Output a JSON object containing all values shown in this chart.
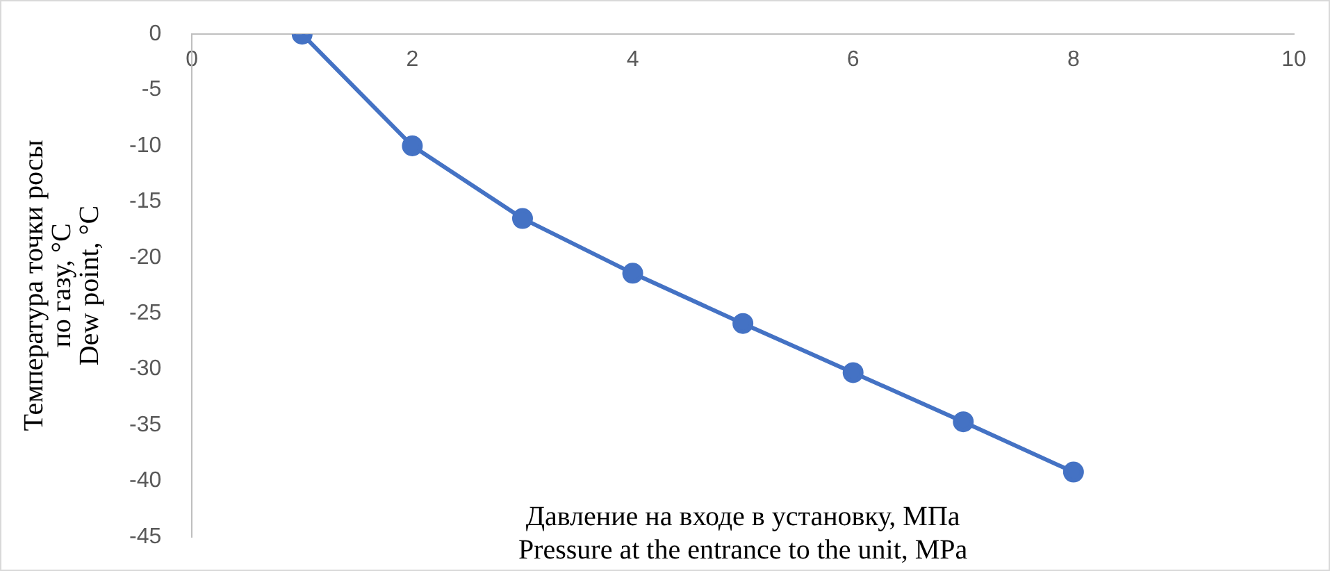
{
  "chart_data": {
    "type": "line",
    "xlabel": "Давление на входе в установку, МПа\nPressure at the entrance to the unit, MPa",
    "ylabel": "Температура точки росы\nпо газу, °C\nDew point, °C",
    "x": [
      1,
      2,
      3,
      4,
      5,
      6,
      7,
      8
    ],
    "series": [
      {
        "color": "#4472c4",
        "values": [
          0,
          -10,
          -16.5,
          -21.4,
          -25.9,
          -30.3,
          -34.7,
          -39.2
        ]
      }
    ],
    "xlim": [
      0,
      10
    ],
    "xticks": [
      0,
      2,
      4,
      6,
      8,
      10
    ],
    "ylim": [
      -45,
      0
    ],
    "yticks": [
      -45,
      -40,
      -35,
      -30,
      -25,
      -20,
      -15,
      -10,
      -5,
      0
    ],
    "grid": false,
    "legend": false,
    "marker": "circle",
    "line_style": "solid"
  }
}
